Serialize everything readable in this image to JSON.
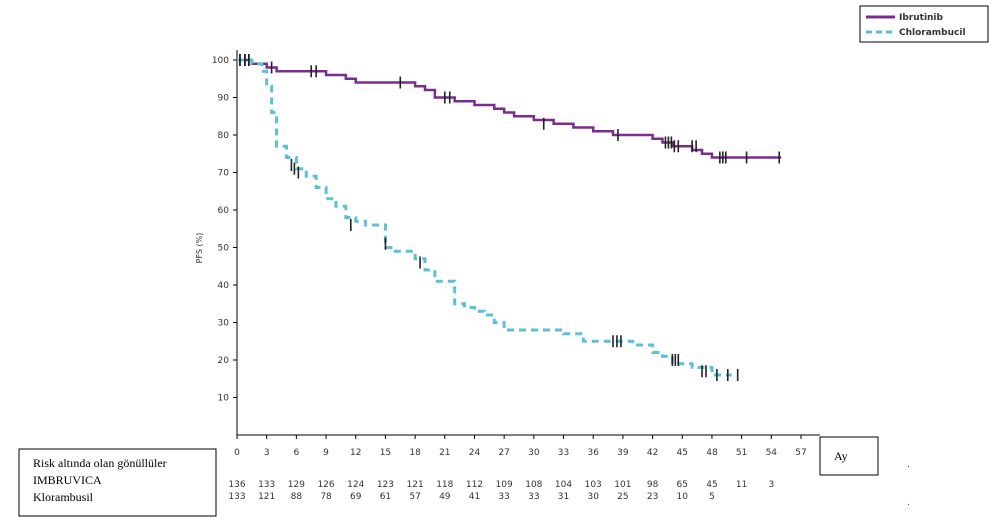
{
  "chart_data": {
    "type": "line",
    "ylabel": "PFS (%)",
    "xlabel": "Ay",
    "xlim": [
      0,
      57
    ],
    "ylim": [
      0,
      100
    ],
    "xticks": [
      0,
      3,
      6,
      9,
      12,
      15,
      18,
      21,
      24,
      27,
      30,
      33,
      36,
      39,
      42,
      45,
      48,
      51,
      54,
      57
    ],
    "yticks": [
      10,
      20,
      30,
      40,
      50,
      60,
      70,
      80,
      90,
      100
    ],
    "legend_position": "top-right",
    "series": [
      {
        "name": "Ibrutinib",
        "color": "#7b2d8e",
        "style": "solid",
        "x": [
          0,
          1.5,
          3,
          4,
          6,
          9,
          11,
          12,
          14,
          16,
          18,
          19,
          20,
          22,
          24,
          26,
          27,
          28,
          30,
          32,
          34,
          35,
          36,
          38,
          40,
          42,
          43,
          44,
          45,
          46,
          47,
          48,
          55
        ],
        "y": [
          100,
          99,
          98,
          97,
          97,
          96,
          95,
          94,
          94,
          94,
          93,
          92,
          90,
          89,
          88,
          87,
          86,
          85,
          84,
          83,
          82,
          82,
          81,
          80,
          80,
          79,
          78,
          77,
          77,
          76,
          75,
          74,
          74
        ],
        "censor_x": [
          0.3,
          0.8,
          1.2,
          3.5,
          7.5,
          8,
          16.5,
          21,
          21.5,
          31,
          38.5,
          43.3,
          43.6,
          43.9,
          44.2,
          44.6,
          46,
          46.4,
          48.8,
          49.1,
          49.4,
          51.5,
          54.8
        ],
        "censor_y": [
          100,
          100,
          100,
          98,
          97,
          97,
          94,
          90,
          90,
          83,
          80,
          78,
          78,
          78,
          77,
          77,
          77,
          77,
          74,
          74,
          74,
          74,
          74
        ]
      },
      {
        "name": "Chlorambucil",
        "color": "#5bc0d8",
        "style": "dashed",
        "x": [
          0,
          1.5,
          2.5,
          3,
          3.5,
          4,
          5,
          6,
          7,
          8,
          9,
          10,
          11,
          12,
          13,
          14,
          15,
          16,
          17,
          18,
          19,
          20,
          21,
          22,
          23,
          24,
          25,
          26,
          27,
          28,
          30,
          32,
          33,
          35,
          37,
          38,
          40,
          42,
          43,
          44,
          46,
          48,
          50
        ],
        "y": [
          100,
          99,
          97,
          93,
          86,
          77,
          74,
          71,
          69,
          66,
          63,
          61,
          58,
          57,
          56,
          56,
          50,
          49,
          49,
          47,
          44,
          41,
          41,
          35,
          34,
          33,
          32,
          30,
          28,
          28,
          28,
          28,
          27,
          25,
          25,
          25,
          24,
          22,
          21,
          19,
          18,
          16,
          16
        ],
        "censor_x": [
          0.3,
          0.8,
          1.2,
          5.5,
          5.8,
          6.2,
          11.5,
          15,
          18.5,
          38,
          38.4,
          38.8,
          44,
          44.3,
          44.6,
          47,
          47.4,
          48.5,
          49.6,
          50.6
        ],
        "censor_y": [
          100,
          100,
          100,
          72,
          71,
          70,
          56,
          51,
          46,
          25,
          25,
          25,
          20,
          20,
          20,
          17,
          17,
          16,
          16,
          16
        ]
      }
    ],
    "risk_table": {
      "title": "Risk altında olan gönüllüler",
      "rows": [
        {
          "label": "IMBRUVICA",
          "x": [
            0,
            3,
            6,
            9,
            12,
            15,
            18,
            21,
            24,
            27,
            30,
            33,
            36,
            39,
            42,
            45,
            48,
            51,
            54
          ],
          "values": [
            "136",
            "133",
            "129",
            "126",
            "124",
            "123",
            "121",
            "118",
            "112",
            "109",
            "108",
            "104",
            "103",
            "101",
            "98",
            "65",
            "45",
            "11",
            "3"
          ]
        },
        {
          "label": "Klorambusil",
          "x": [
            0,
            3,
            6,
            9,
            12,
            15,
            18,
            21,
            24,
            27,
            30,
            33,
            36,
            39,
            42,
            45,
            48
          ],
          "values": [
            "133",
            "121",
            "88",
            "78",
            "69",
            "61",
            "57",
            "49",
            "41",
            "33",
            "33",
            "31",
            "30",
            "25",
            "23",
            "10",
            "5"
          ]
        }
      ]
    }
  },
  "notes": {
    "dot_right_1": ".",
    "dot_right_2": "."
  }
}
